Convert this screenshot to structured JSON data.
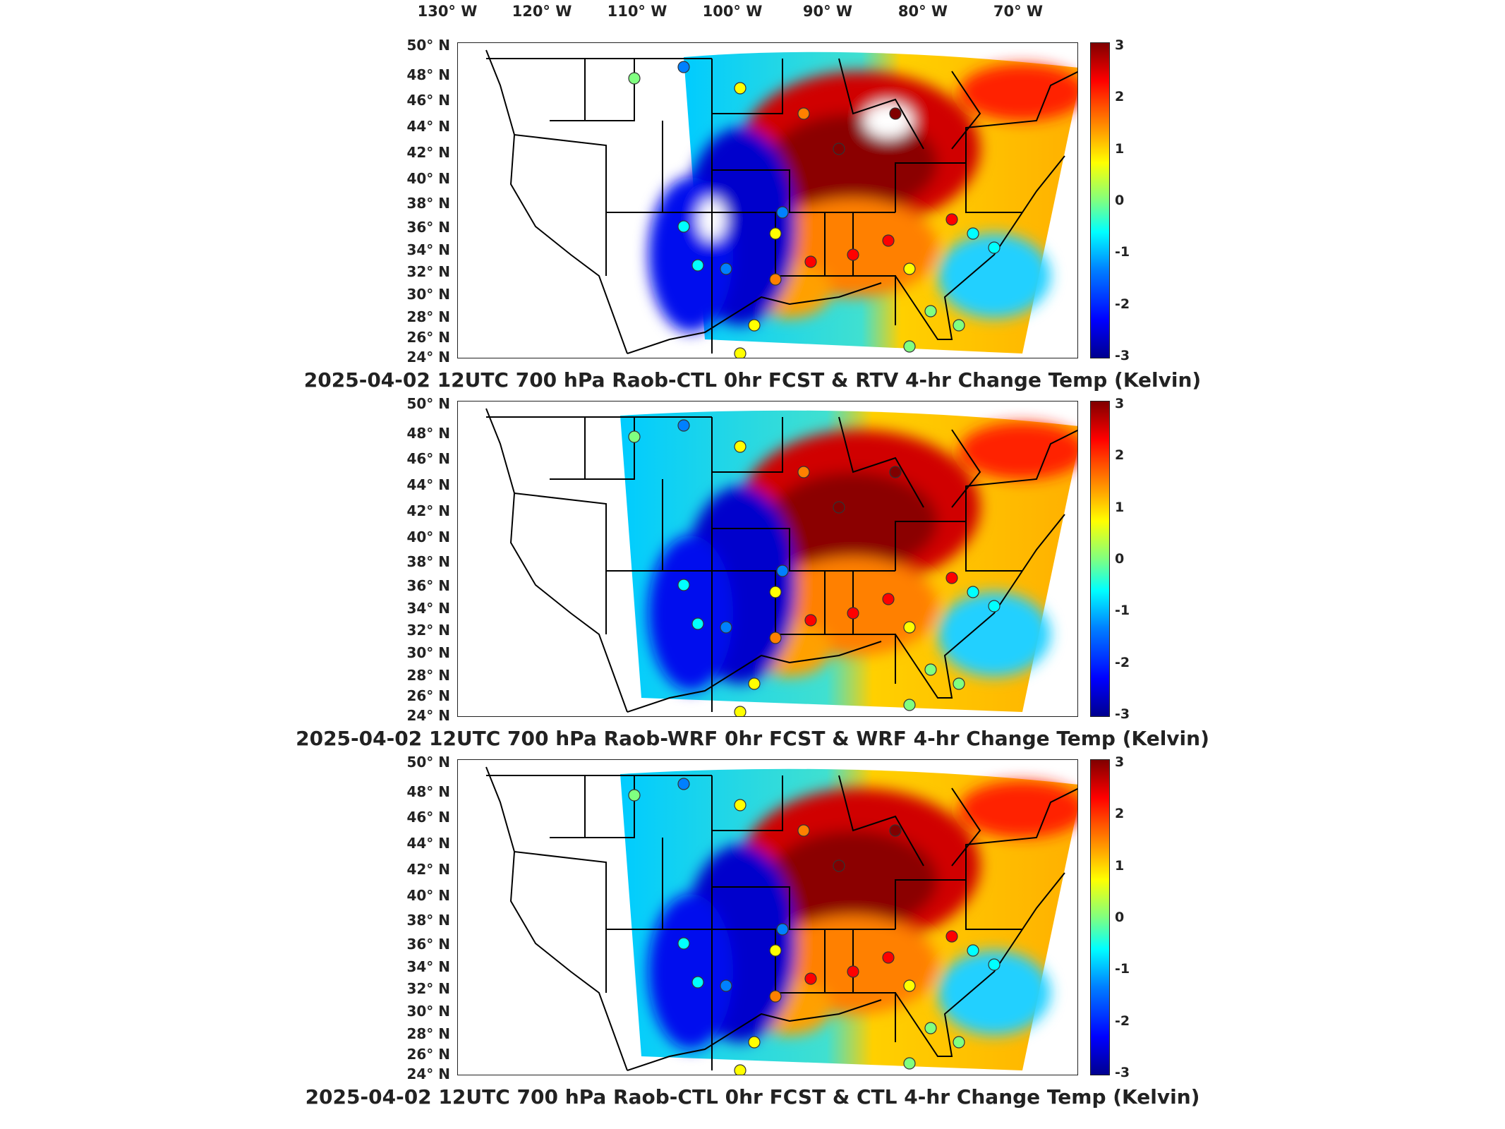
{
  "lon_labels": [
    "130° W",
    "120° W",
    "110° W",
    "100° W",
    "90° W",
    "80° W",
    "70° W"
  ],
  "lat_labels": [
    "50° N",
    "48° N",
    "46° N",
    "44° N",
    "42° N",
    "40° N",
    "38° N",
    "36° N",
    "34° N",
    "32° N",
    "30° N",
    "28° N",
    "26° N",
    "24° N"
  ],
  "colorbar_ticks": [
    "3",
    "2",
    "1",
    "0",
    "-1",
    "-2",
    "-3"
  ],
  "colorbar_colors": [
    "#00008f",
    "#0000ff",
    "#0080ff",
    "#00ffff",
    "#80ff80",
    "#ffff00",
    "#ff8000",
    "#ff0000",
    "#800000"
  ],
  "panels": [
    {
      "title": "2025-04-02 12UTC 700 hPa Raob-CTL 0hr FCST & RTV 4-hr Change Temp (Kelvin)"
    },
    {
      "title": "2025-04-02 12UTC 700 hPa Raob-WRF 0hr FCST & WRF 4-hr Change Temp (Kelvin)"
    },
    {
      "title": "2025-04-02 12UTC 700 hPa Raob-CTL 0hr FCST & CTL 4-hr Change Temp (Kelvin)"
    }
  ]
}
